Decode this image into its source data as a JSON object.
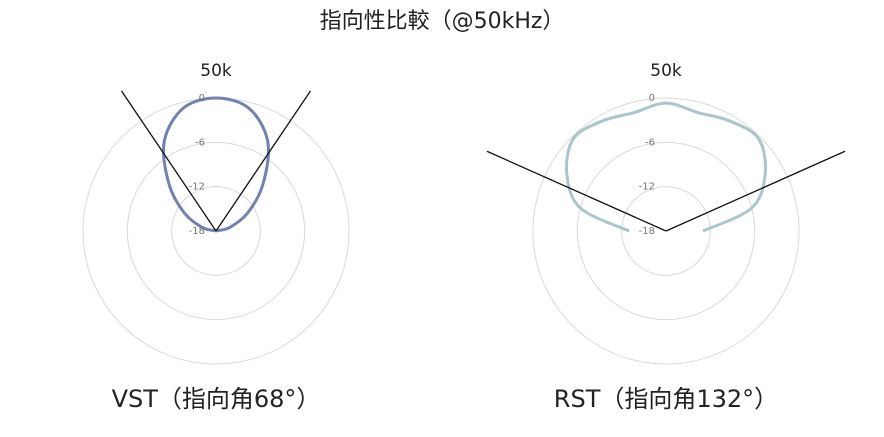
{
  "title": "指向性比較（@50kHz）",
  "chart_data": [
    {
      "type": "polar",
      "title": "50k",
      "subtitle": "VST（指向角68°）",
      "theta": [
        -90,
        -75,
        -60,
        -45,
        -30,
        -15,
        0,
        15,
        30,
        45,
        60,
        75,
        90
      ],
      "series": [
        {
          "color": "#7281b1",
          "values": [
            -18,
            -16,
            -13,
            -9,
            -4,
            -0.8,
            0,
            -0.8,
            -4,
            -9,
            -13,
            -16,
            -18
          ]
        }
      ],
      "rlim": [
        -18,
        0
      ],
      "rticks": [
        0,
        -6,
        -12,
        -18
      ],
      "beam_lines": [
        -34,
        34
      ]
    },
    {
      "type": "polar",
      "title": "50k",
      "subtitle": "RST（指向角132°）",
      "theta": [
        -90,
        -75,
        -60,
        -45,
        -30,
        -15,
        0,
        15,
        30,
        45,
        60,
        75,
        90
      ],
      "series": [
        {
          "color": "#a9c7ca",
          "values": [
            -13,
            -6,
            -2.5,
            -0.3,
            -0.8,
            -1.4,
            -0.7,
            -1.4,
            -0.8,
            -0.3,
            -2.5,
            -6,
            -13
          ]
        }
      ],
      "rlim": [
        -18,
        0
      ],
      "rticks": [
        0,
        -6,
        -12,
        -18
      ],
      "beam_lines": [
        -66,
        66
      ]
    }
  ]
}
